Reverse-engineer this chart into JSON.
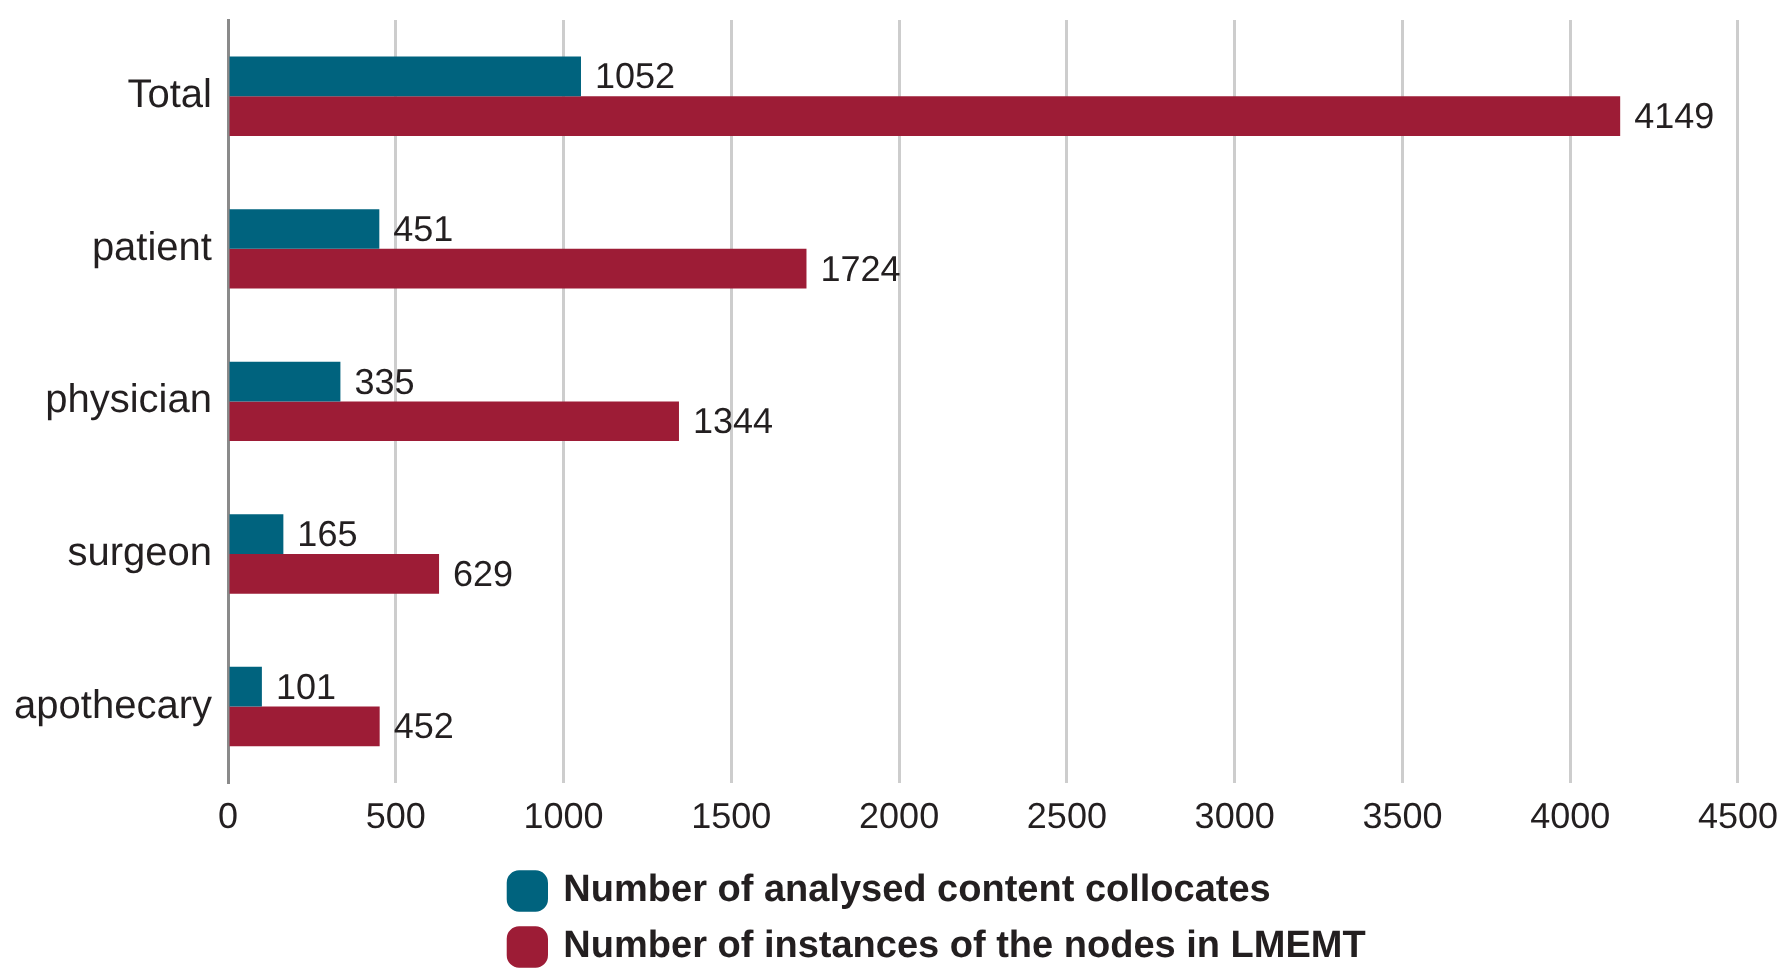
{
  "chart_data": {
    "type": "bar",
    "orientation": "horizontal",
    "categories": [
      "Total",
      "patient",
      "physician",
      "surgeon",
      "apothecary"
    ],
    "series": [
      {
        "name": "Number of analysed content collocates",
        "color": "#00637e",
        "values": [
          1052,
          451,
          335,
          165,
          101
        ]
      },
      {
        "name": "Number of instances of the nodes in LMEMT",
        "color": "#9d1c36",
        "values": [
          4149,
          1724,
          1344,
          629,
          452
        ]
      }
    ],
    "xlim": [
      0,
      4500
    ],
    "xticks": [
      0,
      500,
      1000,
      1500,
      2000,
      2500,
      3000,
      3500,
      4000,
      4500
    ],
    "grid": "x",
    "legend": "bottom",
    "data_labels": true
  }
}
